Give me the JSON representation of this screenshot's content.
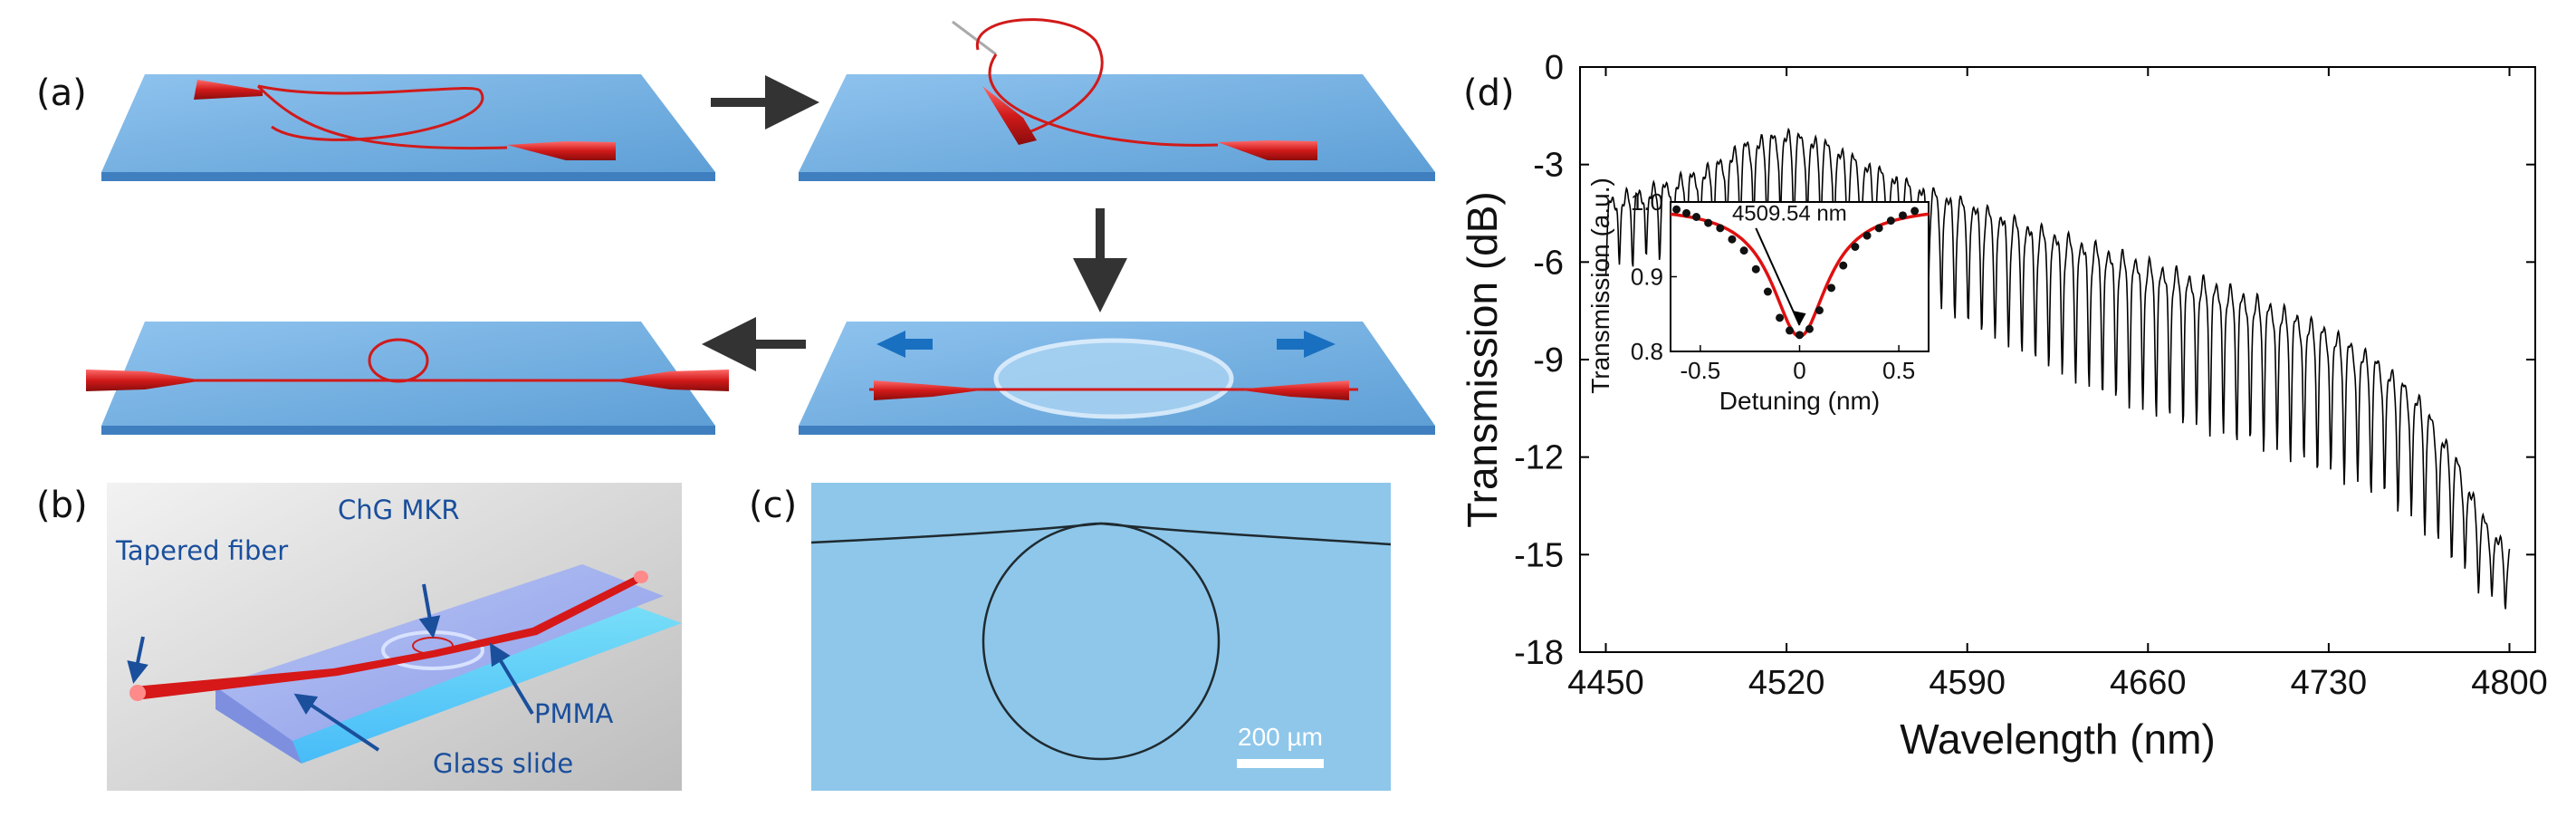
{
  "panels": {
    "a": {
      "label": "(a)"
    },
    "b": {
      "label": "(b)",
      "labels": {
        "tapered_fiber": "Tapered fiber",
        "mkr": "ChG MKR",
        "pmma": "PMMA",
        "glass": "Glass slide"
      }
    },
    "c": {
      "label": "(c)",
      "scale_bar": "200 µm"
    },
    "d": {
      "label": "(d)"
    }
  },
  "chart_data": [
    {
      "type": "line",
      "xlabel": "Wavelength (nm)",
      "ylabel": "Transmission (dB)",
      "xlim": [
        4440,
        4810
      ],
      "ylim": [
        -18,
        0
      ],
      "xticks": [
        4450,
        4520,
        4590,
        4660,
        4730,
        4800
      ],
      "yticks": [
        0,
        -3,
        -6,
        -9,
        -12,
        -15,
        -18
      ],
      "ytick_labels": [
        "0",
        "-3",
        "-6",
        "-9",
        "-12",
        "-15",
        "-18"
      ],
      "envelope": {
        "x": [
          4450,
          4470,
          4490,
          4505,
          4520,
          4535,
          4550,
          4570,
          4590,
          4610,
          4630,
          4650,
          4670,
          4690,
          4710,
          4730,
          4750,
          4765,
          4780,
          4790,
          4800
        ],
        "top": [
          -4.0,
          -3.6,
          -3.0,
          -2.2,
          -1.9,
          -2.2,
          -2.8,
          -3.5,
          -4.0,
          -4.6,
          -5.1,
          -5.6,
          -6.1,
          -6.6,
          -7.2,
          -7.9,
          -8.9,
          -10.0,
          -12.0,
          -13.8,
          -14.8
        ],
        "dip": [
          -6.2,
          -5.8,
          -5.5,
          -5.0,
          -4.8,
          -5.2,
          -6.2,
          -7.2,
          -8.0,
          -8.8,
          -9.6,
          -10.3,
          -10.8,
          -11.3,
          -11.8,
          -12.5,
          -13.2,
          -14.2,
          -15.4,
          -16.4,
          -16.8
        ]
      },
      "fsr_nm": 5.2,
      "color": "#000000"
    },
    {
      "type": "scatter",
      "role": "inset",
      "xlabel": "Detuning (nm)",
      "ylabel": "Transmission (a.u.)",
      "xlim": [
        -0.65,
        0.65
      ],
      "ylim": [
        0.8,
        1.0
      ],
      "xticks": [
        -0.5,
        0,
        0.5
      ],
      "xtick_labels": [
        "-0.5",
        "0",
        "0.5"
      ],
      "yticks": [
        0.8,
        0.9,
        1.0
      ],
      "ytick_labels": [
        "0.8",
        "0.9",
        "1.0"
      ],
      "annotation": "4509.54 nm",
      "measured": {
        "x": [
          -0.62,
          -0.57,
          -0.52,
          -0.46,
          -0.4,
          -0.34,
          -0.28,
          -0.22,
          -0.16,
          -0.1,
          -0.05,
          0.0,
          0.05,
          0.1,
          0.16,
          0.22,
          0.28,
          0.34,
          0.4,
          0.46,
          0.52,
          0.58
        ],
        "y": [
          0.99,
          0.985,
          0.98,
          0.972,
          0.965,
          0.95,
          0.935,
          0.91,
          0.88,
          0.845,
          0.828,
          0.822,
          0.83,
          0.855,
          0.885,
          0.915,
          0.94,
          0.955,
          0.965,
          0.975,
          0.982,
          0.988
        ]
      },
      "fit": {
        "model": "lorentzian",
        "center": 0,
        "min": 0.82,
        "baseline": 0.995,
        "hwhm": 0.17,
        "color": "#e01010"
      }
    }
  ]
}
